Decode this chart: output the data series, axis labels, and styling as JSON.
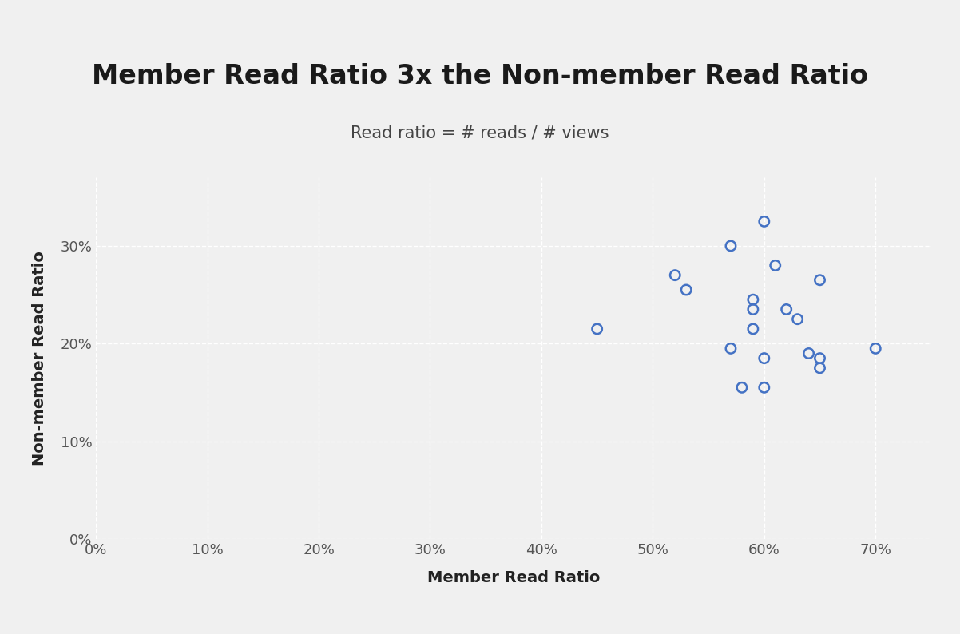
{
  "title": "Member Read Ratio 3x the Non-member Read Ratio",
  "subtitle": "Read ratio = # reads / # views",
  "xlabel": "Member Read Ratio",
  "ylabel": "Non-member Read Ratio",
  "xlim": [
    0,
    0.75
  ],
  "ylim": [
    0,
    0.37
  ],
  "xticks": [
    0.0,
    0.1,
    0.2,
    0.3,
    0.4,
    0.5,
    0.6,
    0.7
  ],
  "yticks": [
    0.0,
    0.1,
    0.2,
    0.3
  ],
  "xtick_labels": [
    "0%",
    "10%",
    "20%",
    "30%",
    "40%",
    "50%",
    "60%",
    "70%"
  ],
  "ytick_labels": [
    "0%",
    "10%",
    "20%",
    "30%"
  ],
  "scatter_x": [
    0.45,
    0.52,
    0.53,
    0.57,
    0.57,
    0.58,
    0.59,
    0.59,
    0.59,
    0.6,
    0.6,
    0.6,
    0.61,
    0.62,
    0.63,
    0.64,
    0.65,
    0.65,
    0.65,
    0.7
  ],
  "scatter_y": [
    0.215,
    0.27,
    0.255,
    0.3,
    0.195,
    0.155,
    0.245,
    0.235,
    0.215,
    0.325,
    0.185,
    0.155,
    0.28,
    0.235,
    0.225,
    0.19,
    0.185,
    0.175,
    0.265,
    0.195
  ],
  "marker_color": "#4472C4",
  "marker_size": 80,
  "marker_linewidth": 1.8,
  "background_color": "#F0F0F0",
  "grid_color": "#FFFFFF",
  "title_fontsize": 24,
  "subtitle_fontsize": 15,
  "axis_label_fontsize": 14,
  "tick_fontsize": 13
}
